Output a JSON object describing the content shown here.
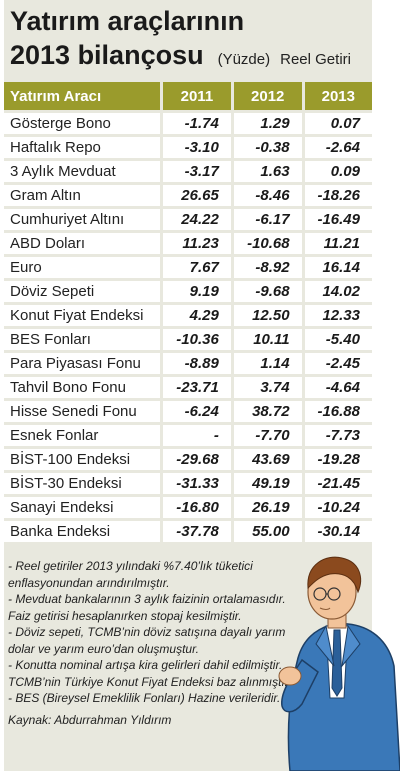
{
  "title_line1": "Yatırım araçlarının",
  "title_line2": "2013 bilançosu",
  "unit": "(Yüzde)",
  "subtitle": "Reel Getiri",
  "table": {
    "headers": [
      "Yatırım Aracı",
      "2011",
      "2012",
      "2013"
    ],
    "rows": [
      {
        "name": "Gösterge Bono",
        "v2011": "-1.74",
        "v2012": "1.29",
        "v2013": "0.07"
      },
      {
        "name": "Haftalık Repo",
        "v2011": "-3.10",
        "v2012": "-0.38",
        "v2013": "-2.64"
      },
      {
        "name": "3 Aylık Mevduat",
        "v2011": "-3.17",
        "v2012": "1.63",
        "v2013": "0.09"
      },
      {
        "name": "Gram Altın",
        "v2011": "26.65",
        "v2012": "-8.46",
        "v2013": "-18.26"
      },
      {
        "name": "Cumhuriyet Altını",
        "v2011": "24.22",
        "v2012": "-6.17",
        "v2013": "-16.49"
      },
      {
        "name": "ABD Doları",
        "v2011": "11.23",
        "v2012": "-10.68",
        "v2013": "11.21"
      },
      {
        "name": "Euro",
        "v2011": "7.67",
        "v2012": "-8.92",
        "v2013": "16.14"
      },
      {
        "name": "Döviz Sepeti",
        "v2011": "9.19",
        "v2012": "-9.68",
        "v2013": "14.02"
      },
      {
        "name": "Konut Fiyat Endeksi",
        "v2011": "4.29",
        "v2012": "12.50",
        "v2013": "12.33"
      },
      {
        "name": "BES Fonları",
        "v2011": "-10.36",
        "v2012": "10.11",
        "v2013": "-5.40"
      },
      {
        "name": "Para Piyasası Fonu",
        "v2011": "-8.89",
        "v2012": "1.14",
        "v2013": "-2.45"
      },
      {
        "name": "Tahvil Bono Fonu",
        "v2011": "-23.71",
        "v2012": "3.74",
        "v2013": "-4.64"
      },
      {
        "name": "Hisse Senedi Fonu",
        "v2011": "-6.24",
        "v2012": "38.72",
        "v2013": "-16.88"
      },
      {
        "name": "Esnek Fonlar",
        "v2011": "-",
        "v2012": "-7.70",
        "v2013": "-7.73"
      },
      {
        "name": "BİST-100 Endeksi",
        "v2011": "-29.68",
        "v2012": "43.69",
        "v2013": "-19.28"
      },
      {
        "name": "BİST-30 Endeksi",
        "v2011": "-31.33",
        "v2012": "49.19",
        "v2013": "-21.45"
      },
      {
        "name": "Sanayi Endeksi",
        "v2011": "-16.80",
        "v2012": "26.19",
        "v2013": "-10.24"
      },
      {
        "name": "Banka Endeksi",
        "v2011": "-37.78",
        "v2012": "55.00",
        "v2013": "-30.14"
      }
    ]
  },
  "notes": [
    "- Reel getiriler 2013 yılındaki %7.40’lık tüketici enflasyonundan arındırılmıştır.",
    "- Mevduat bankalarının 3 aylık faizinin ortalamasıdır. Faiz getirisi hesaplanırken stopaj kesilmiştir.",
    "- Döviz sepeti, TCMB’nin döviz satışına dayalı yarım dolar ve yarım euro’dan oluşmuştur.",
    "- Konutta nominal artışa kira gelirleri dahil edilmiştir. TCMB’nin Türkiye Konut Fiyat Endeksi baz alınmıştır.",
    "- BES (Bireysel Emeklilik Fonları) Hazine verileridir."
  ],
  "source": "Kaynak: Abdurrahman Yıldırım",
  "colors": {
    "header": "#9a9b2c",
    "panel": "#e8e8de"
  }
}
